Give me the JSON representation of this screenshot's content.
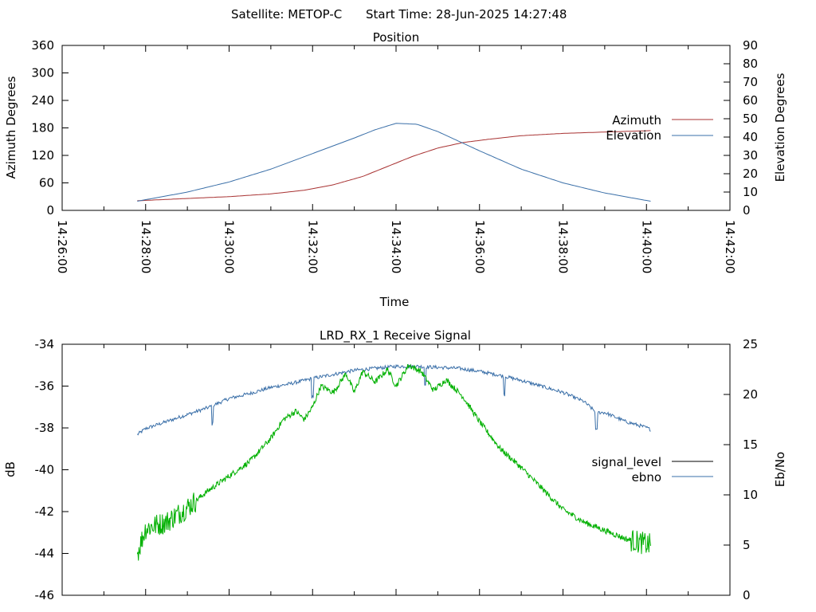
{
  "header": {
    "satellite": "Satellite: METOP-C",
    "start_time": "Start Time: 28-Jun-2025 14:27:48"
  },
  "chart_data": [
    {
      "type": "line",
      "title": "Position",
      "xlabel": "Time",
      "ylabel": "Azimuth Degrees",
      "y2label": "Elevation Degrees",
      "x_ticks": [
        "14:26:00",
        "14:28:00",
        "14:30:00",
        "14:32:00",
        "14:34:00",
        "14:36:00",
        "14:38:00",
        "14:40:00",
        "14:42:00"
      ],
      "xlim_minutes": [
        0,
        16
      ],
      "ylim": [
        0,
        360
      ],
      "y_ticks": [
        "0",
        "60",
        "120",
        "180",
        "240",
        "300",
        "360"
      ],
      "y2lim": [
        0,
        90
      ],
      "y2_ticks": [
        "0",
        "10",
        "20",
        "30",
        "40",
        "50",
        "60",
        "70",
        "80",
        "90"
      ],
      "legend_position": "right",
      "grid": false,
      "series": [
        {
          "name": "Azimuth",
          "axis": "left",
          "color": "#a83232",
          "x_minutes": [
            1.8,
            3.0,
            4.0,
            5.0,
            5.8,
            6.5,
            7.2,
            7.8,
            8.4,
            9.0,
            9.6,
            10.2,
            11.0,
            12.0,
            13.0,
            14.1
          ],
          "values": [
            21,
            26,
            30,
            36,
            44,
            56,
            74,
            96,
            118,
            136,
            148,
            155,
            163,
            168,
            171,
            174
          ]
        },
        {
          "name": "Elevation",
          "axis": "right",
          "color": "#3a6fa8",
          "x_minutes": [
            1.8,
            3.0,
            4.0,
            5.0,
            6.0,
            7.0,
            7.5,
            8.0,
            8.5,
            9.0,
            10.0,
            11.0,
            12.0,
            13.0,
            14.1
          ],
          "values": [
            5,
            10,
            15.5,
            22.5,
            31,
            39.5,
            44,
            47.5,
            47,
            43,
            32.5,
            22.5,
            15,
            9.5,
            5
          ]
        }
      ]
    },
    {
      "type": "line",
      "title": "LRD_RX_1 Receive Signal",
      "xlabel": "",
      "ylabel": "dB",
      "y2label": "Eb/No",
      "xlim_minutes": [
        0,
        16
      ],
      "ylim": [
        -46,
        -34
      ],
      "y_ticks": [
        "-34",
        "-36",
        "-38",
        "-40",
        "-42",
        "-44",
        "-46"
      ],
      "y2lim": [
        0,
        25
      ],
      "y2_ticks": [
        "0",
        "5",
        "10",
        "15",
        "20",
        "25"
      ],
      "legend_position": "right",
      "grid": false,
      "series": [
        {
          "name": "signal_level",
          "axis": "left",
          "color": "#00b000",
          "legend_color": "#000000",
          "x_minutes": [
            1.8,
            2.0,
            2.5,
            3.0,
            3.5,
            4.0,
            4.5,
            5.0,
            5.3,
            5.6,
            5.8,
            6.0,
            6.2,
            6.5,
            6.8,
            7.0,
            7.2,
            7.5,
            7.8,
            8.0,
            8.3,
            8.6,
            8.9,
            9.2,
            9.6,
            10.0,
            10.5,
            11.0,
            11.5,
            12.0,
            12.5,
            13.0,
            13.5,
            14.1
          ],
          "values": [
            -44,
            -42.8,
            -42.5,
            -41.8,
            -41.0,
            -40.3,
            -39.6,
            -38.5,
            -37.6,
            -37.2,
            -37.6,
            -37.0,
            -36.0,
            -36.3,
            -35.4,
            -36.3,
            -35.3,
            -35.8,
            -35.2,
            -36.0,
            -35.0,
            -35.3,
            -36.2,
            -35.7,
            -36.5,
            -37.7,
            -39.0,
            -39.9,
            -40.9,
            -41.9,
            -42.5,
            -42.9,
            -43.3,
            -43.6
          ]
        },
        {
          "name": "ebno",
          "axis": "right",
          "color": "#3a6fa8",
          "x_minutes": [
            1.8,
            2.0,
            2.5,
            3.0,
            3.5,
            4.0,
            4.5,
            5.0,
            5.5,
            6.0,
            6.5,
            7.0,
            7.5,
            8.0,
            8.5,
            9.0,
            9.5,
            10.0,
            10.5,
            11.0,
            11.5,
            12.0,
            12.5,
            12.8,
            13.0,
            13.5,
            14.0,
            14.1
          ],
          "values": [
            16,
            16.6,
            17.3,
            18.0,
            18.7,
            19.6,
            20.1,
            20.7,
            21.1,
            21.6,
            22.0,
            22.4,
            22.6,
            22.8,
            22.8,
            22.7,
            22.6,
            22.3,
            21.9,
            21.4,
            20.8,
            20.2,
            19.3,
            18.2,
            18.2,
            17.3,
            16.7,
            16.5
          ]
        }
      ]
    }
  ]
}
